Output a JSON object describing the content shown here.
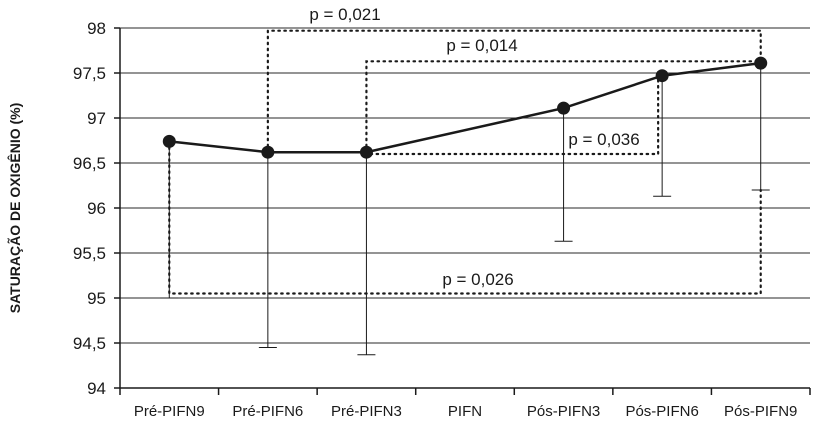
{
  "chart_data": {
    "type": "line",
    "title": "",
    "xlabel": "",
    "ylabel": "SATURAÇÃO DE OXIGÊNIO (%)",
    "categories": [
      "Pré-PIFN9",
      "Pré-PIFN6",
      "Pré-PIFN3",
      "PIFN",
      "Pós-PIFN3",
      "Pós-PIFN6",
      "Pós-PIFN9"
    ],
    "ylim": [
      94,
      98
    ],
    "yticks": [
      94,
      94.5,
      95,
      95.5,
      96,
      96.5,
      97,
      97.5,
      98
    ],
    "ytick_labels": [
      "94",
      "94,5",
      "95",
      "95,5",
      "96",
      "96,5",
      "97",
      "97,5",
      "98"
    ],
    "grid": true,
    "series": [
      {
        "values": [
          96.74,
          96.62,
          96.62,
          null,
          97.11,
          97.47,
          97.61
        ],
        "error_lower": [
          95.0,
          94.45,
          94.37,
          null,
          95.63,
          96.13,
          96.2
        ],
        "color": "#1a1a1a"
      }
    ],
    "annotations": [
      {
        "text": "p = 0,021",
        "from": "Pré-PIFN6",
        "to": "Pós-PIFN9"
      },
      {
        "text": "p = 0,014",
        "from": "Pré-PIFN3",
        "to": "Pós-PIFN9"
      },
      {
        "text": "p = 0,036",
        "from": "Pré-PIFN3",
        "to": "Pós-PIFN6"
      },
      {
        "text": "p = 0,026",
        "from": "Pré-PIFN9",
        "to": "Pós-PIFN9"
      }
    ]
  }
}
